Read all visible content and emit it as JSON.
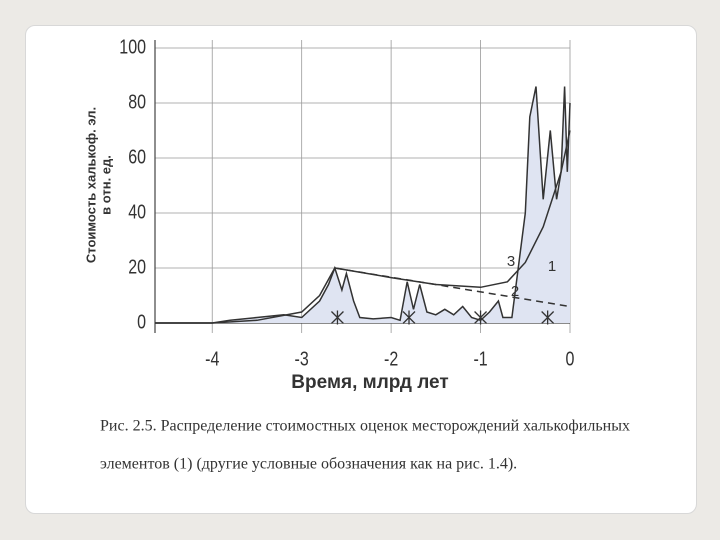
{
  "chart_data": {
    "type": "line",
    "ylabel": [
      "Стоимость халькоф. эл.",
      "в отн. ед."
    ],
    "xlabel": "Время, млрд лет",
    "xlim": [
      -4.64,
      0
    ],
    "xticks": [
      -4,
      -3,
      -2,
      -1,
      0
    ],
    "ylim": [
      0,
      100
    ],
    "yticks": [
      0,
      20,
      40,
      60,
      80,
      100
    ],
    "grid": true,
    "series": [
      {
        "color": "#333333",
        "fill": "#dfe4f2",
        "dash": false,
        "x": [
          -4.64,
          -4.0,
          -3.8,
          -3.5,
          -3.2,
          -3.0,
          -2.8,
          -2.7,
          -2.63,
          -2.55,
          -2.5,
          -2.42,
          -2.35,
          -2.2,
          -2.0,
          -1.9,
          -1.82,
          -1.75,
          -1.68,
          -1.6,
          -1.5,
          -1.4,
          -1.3,
          -1.2,
          -1.1,
          -1.0,
          -0.9,
          -0.8,
          -0.75,
          -0.65,
          -0.5,
          -0.45,
          -0.38,
          -0.3,
          -0.22,
          -0.15,
          -0.1,
          -0.06,
          -0.03,
          0
        ],
        "values": [
          0,
          0,
          1,
          2,
          3,
          2,
          8,
          14,
          20,
          12,
          18,
          8,
          2,
          1.5,
          2,
          1,
          15,
          5,
          14,
          4,
          3,
          5,
          3,
          6,
          2,
          1,
          4,
          8,
          2,
          2,
          40,
          75,
          86,
          45,
          70,
          45,
          55,
          86,
          55,
          80
        ]
      },
      {
        "color": "#333333",
        "fill": null,
        "dash": true,
        "x": [
          -2.63,
          0
        ],
        "values": [
          20,
          6
        ]
      },
      {
        "color": "#333333",
        "fill": null,
        "dash": false,
        "x": [
          -4.64,
          -4.0,
          -3.5,
          -3.0,
          -2.8,
          -2.63,
          -2.0,
          -1.5,
          -1.0,
          -0.7,
          -0.5,
          -0.3,
          -0.1,
          0
        ],
        "values": [
          0,
          0,
          1,
          4,
          10,
          20,
          16.5,
          14,
          13,
          15,
          22,
          35,
          55,
          70
        ]
      }
    ],
    "markers": {
      "x": [
        -2.6,
        -1.8,
        -1.0,
        -0.25
      ],
      "values": [
        2,
        2,
        2,
        2
      ]
    },
    "annotations": [
      "3",
      "2",
      "1"
    ],
    "caption": [
      "Рис. 2.5. Распределение стоимостных оценок месторождений халькофильных",
      "элементов (1) (другие условные обозначения как на рис. 1.4)."
    ]
  }
}
